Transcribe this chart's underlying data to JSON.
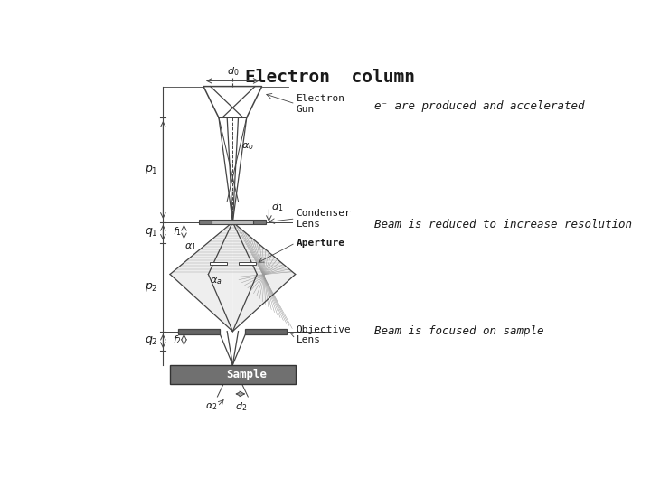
{
  "title": "Electron  column",
  "title_fontsize": 14,
  "title_fontweight": "bold",
  "bg_color": "#ffffff",
  "annotation1": "e⁻ are produced and accelerated",
  "annotation2": "Beam is reduced to increase resolution",
  "annotation3": "Beam is focused on sample",
  "label_gun": "Electron\nGun",
  "label_condenser": "Condenser\nLens",
  "label_aperture": "Aperture",
  "label_objective": "Objective\nLens",
  "label_sample": "Sample",
  "text_color": "#1a1a1a",
  "diagram_color": "#444444",
  "line_color": "#555555"
}
